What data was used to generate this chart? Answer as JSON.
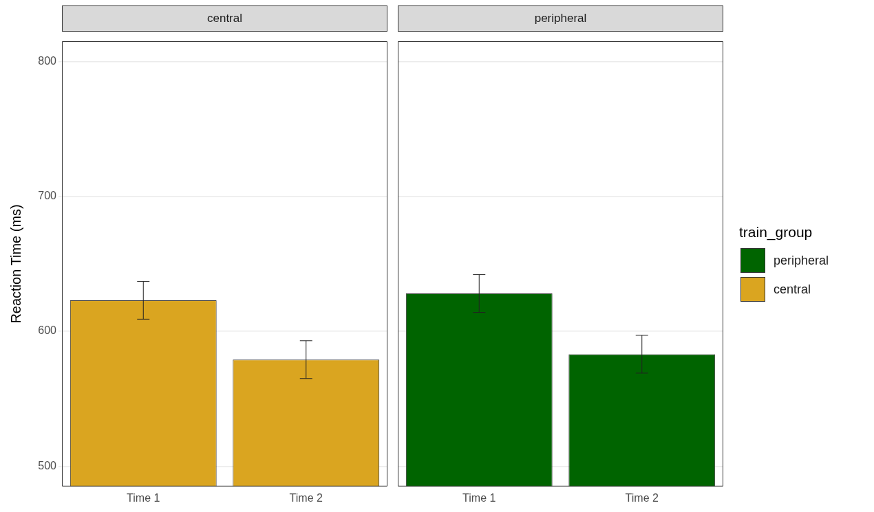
{
  "chart_data": [
    {
      "type": "bar",
      "title": "central",
      "ylabel": "Reaction Time (ms)",
      "categories": [
        "Time 1",
        "Time 2"
      ],
      "series": [
        {
          "name": "central",
          "color": "#daa520",
          "values": [
            623,
            579
          ],
          "errors": [
            14,
            14
          ]
        }
      ],
      "ylim": [
        485,
        815
      ],
      "yticks": [
        500,
        600,
        700,
        800
      ],
      "grid": "y",
      "legend": "right"
    },
    {
      "type": "bar",
      "title": "peripheral",
      "categories": [
        "Time 1",
        "Time 2"
      ],
      "series": [
        {
          "name": "peripheral",
          "color": "#006400",
          "values": [
            628,
            583
          ],
          "errors": [
            14,
            14
          ]
        }
      ],
      "ylim": [
        485,
        815
      ],
      "yticks": [
        500,
        600,
        700,
        800
      ],
      "grid": "y",
      "legend": "right",
      "legend_title": "train_group",
      "tick_labels": "x"
    }
  ]
}
